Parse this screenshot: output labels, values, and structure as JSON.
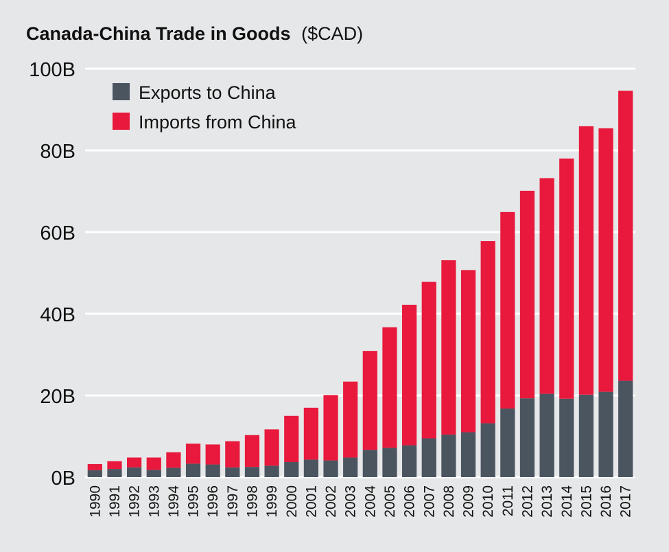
{
  "chart_data": {
    "type": "bar",
    "stacked": true,
    "title": "Canada-China Trade in Goods",
    "title_suffix": "($CAD)",
    "xlabel": "",
    "ylabel": "",
    "ylim": [
      0,
      100
    ],
    "y_ticks": [
      {
        "value": 0,
        "label": "0B"
      },
      {
        "value": 20,
        "label": "20B"
      },
      {
        "value": 40,
        "label": "40B"
      },
      {
        "value": 60,
        "label": "60B"
      },
      {
        "value": 80,
        "label": "80B"
      },
      {
        "value": 100,
        "label": "100B"
      }
    ],
    "grid": true,
    "legend_position": "top-left",
    "categories": [
      "1990",
      "1991",
      "1992",
      "1993",
      "1994",
      "1995",
      "1996",
      "1997",
      "1998",
      "1999",
      "2000",
      "2001",
      "2002",
      "2003",
      "2004",
      "2005",
      "2006",
      "2007",
      "2008",
      "2009",
      "2010",
      "2011",
      "2012",
      "2013",
      "2014",
      "2015",
      "2016",
      "2017"
    ],
    "series": [
      {
        "name": "Exports to China",
        "color": "#4a5560",
        "values": [
          1.7,
          2.0,
          2.4,
          1.8,
          2.3,
          3.3,
          3.1,
          2.4,
          2.5,
          2.8,
          3.7,
          4.3,
          4.1,
          4.8,
          6.7,
          7.2,
          7.8,
          9.5,
          10.4,
          11.0,
          13.2,
          16.8,
          19.3,
          20.4,
          19.2,
          20.2,
          20.9,
          23.6
        ]
      },
      {
        "name": "Imports from China",
        "color": "#e8193c",
        "values": [
          1.5,
          1.9,
          2.4,
          3.0,
          3.8,
          4.9,
          4.9,
          6.4,
          7.8,
          8.9,
          11.3,
          12.7,
          16.0,
          18.6,
          24.2,
          29.5,
          34.4,
          38.3,
          42.7,
          39.7,
          44.6,
          48.1,
          50.8,
          52.8,
          58.8,
          65.7,
          64.5,
          71.0
        ]
      }
    ]
  }
}
